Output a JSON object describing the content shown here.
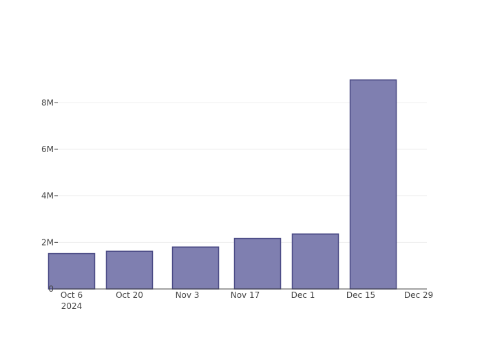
{
  "chart_data": {
    "type": "bar",
    "title": "",
    "xlabel": "",
    "ylabel": "",
    "x_start_date": "2024-10-06",
    "x_end_date": "2024-12-29",
    "bars": [
      {
        "date": "2024-10-06",
        "value": 1520000
      },
      {
        "date": "2024-10-20",
        "value": 1620000
      },
      {
        "date": "2024-11-05",
        "value": 1800000
      },
      {
        "date": "2024-11-20",
        "value": 2170000
      },
      {
        "date": "2024-12-04",
        "value": 2360000
      },
      {
        "date": "2024-12-18",
        "value": 8980000
      }
    ],
    "x_ticks": [
      {
        "date": "2024-10-06",
        "label": "Oct 6",
        "sublabel": "2024"
      },
      {
        "date": "2024-10-20",
        "label": "Oct 20"
      },
      {
        "date": "2024-11-03",
        "label": "Nov 3"
      },
      {
        "date": "2024-11-17",
        "label": "Nov 17"
      },
      {
        "date": "2024-12-01",
        "label": "Dec 1"
      },
      {
        "date": "2024-12-15",
        "label": "Dec 15"
      },
      {
        "date": "2024-12-29",
        "label": "Dec 29"
      }
    ],
    "y_ticks": [
      {
        "value": 0,
        "label": "0"
      },
      {
        "value": 2000000,
        "label": "2M"
      },
      {
        "value": 4000000,
        "label": "4M"
      },
      {
        "value": 6000000,
        "label": "6M"
      },
      {
        "value": 8000000,
        "label": "8M"
      }
    ],
    "ylim": [
      0,
      9000000
    ],
    "grid": true,
    "legend": "none",
    "colors": {
      "bar_fill": "#7f7fb0",
      "bar_stroke": "#4a4a85",
      "grid": "#eeeeee",
      "axis": "#444444",
      "tick_text": "#444444"
    }
  }
}
